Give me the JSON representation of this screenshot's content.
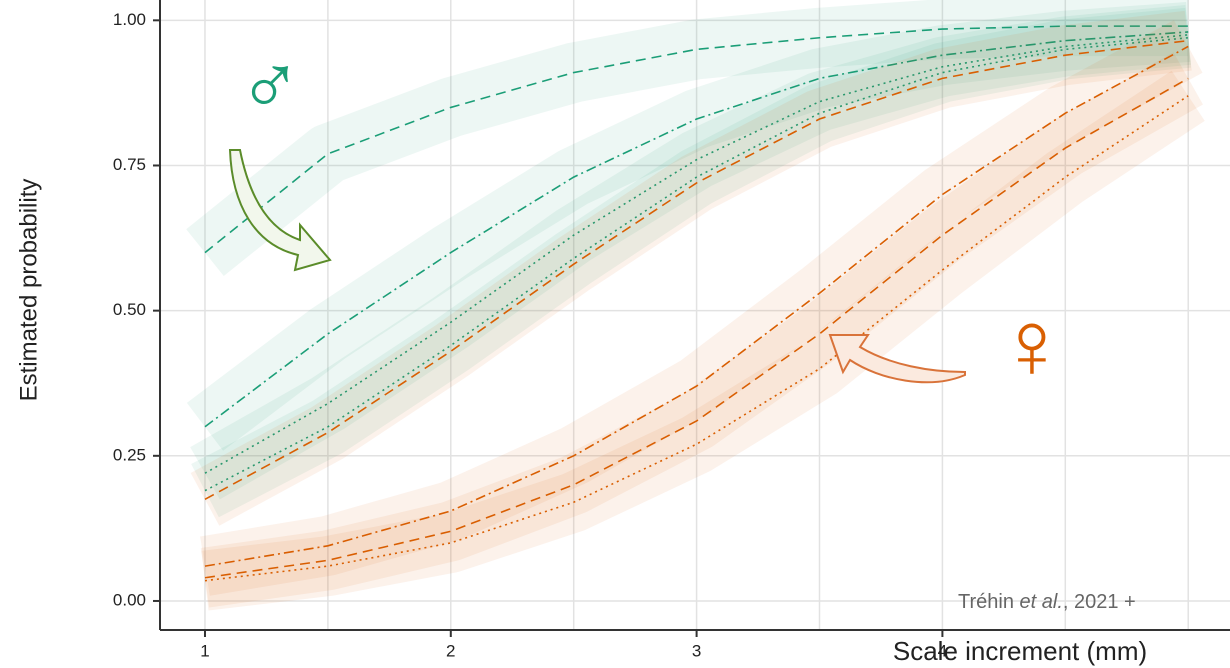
{
  "chart_data": {
    "type": "line",
    "y_label": "Estimated probability",
    "x_label": "Scale increment (mm)",
    "male_symbol": "♂",
    "female_symbol": "♀",
    "credit": {
      "author": "Tréhin",
      "etal": "et al.",
      "year": ", 2021 +"
    },
    "x": [
      1,
      1.5,
      2,
      2.5,
      3,
      3.5,
      4,
      4.5,
      5
    ],
    "series": [
      {
        "color": "#1b9e77",
        "dash": "dashed",
        "values": [
          0.6,
          0.77,
          0.85,
          0.91,
          0.95,
          0.97,
          0.985,
          0.99,
          0.99
        ]
      },
      {
        "color": "#1b9e77",
        "dash": "dashdot",
        "values": [
          0.3,
          0.46,
          0.6,
          0.73,
          0.83,
          0.9,
          0.94,
          0.965,
          0.98
        ]
      },
      {
        "color": "#1b9e77",
        "dash": "dotted",
        "values": [
          0.22,
          0.34,
          0.48,
          0.63,
          0.76,
          0.86,
          0.92,
          0.955,
          0.975
        ]
      },
      {
        "color": "#1b9e77",
        "dash": "dotted",
        "values": [
          0.19,
          0.3,
          0.44,
          0.59,
          0.73,
          0.84,
          0.91,
          0.95,
          0.97
        ]
      },
      {
        "color": "#d95f02",
        "dash": "dashed",
        "values": [
          0.175,
          0.29,
          0.43,
          0.58,
          0.72,
          0.83,
          0.9,
          0.94,
          0.965
        ]
      },
      {
        "color": "#d95f02",
        "dash": "dashdot",
        "values": [
          0.06,
          0.095,
          0.155,
          0.25,
          0.37,
          0.53,
          0.7,
          0.84,
          0.955
        ]
      },
      {
        "color": "#d95f02",
        "dash": "dashed",
        "values": [
          0.04,
          0.07,
          0.12,
          0.2,
          0.31,
          0.46,
          0.63,
          0.78,
          0.9
        ]
      },
      {
        "color": "#d95f02",
        "dash": "dotted",
        "values": [
          0.035,
          0.06,
          0.1,
          0.17,
          0.27,
          0.4,
          0.57,
          0.73,
          0.87
        ]
      }
    ],
    "xlim": [
      0.817,
      5.17
    ],
    "ylim": [
      -0.05,
      1.035
    ],
    "xticks": [
      1,
      2,
      3,
      4
    ],
    "yticks": [
      {
        "value": 0,
        "label": "0.00"
      },
      {
        "value": 0.25,
        "label": "0.25"
      },
      {
        "value": 0.5,
        "label": "0.50"
      },
      {
        "value": 0.75,
        "label": "0.75"
      },
      {
        "value": 1,
        "label": "1.00"
      }
    ],
    "grid": true
  }
}
